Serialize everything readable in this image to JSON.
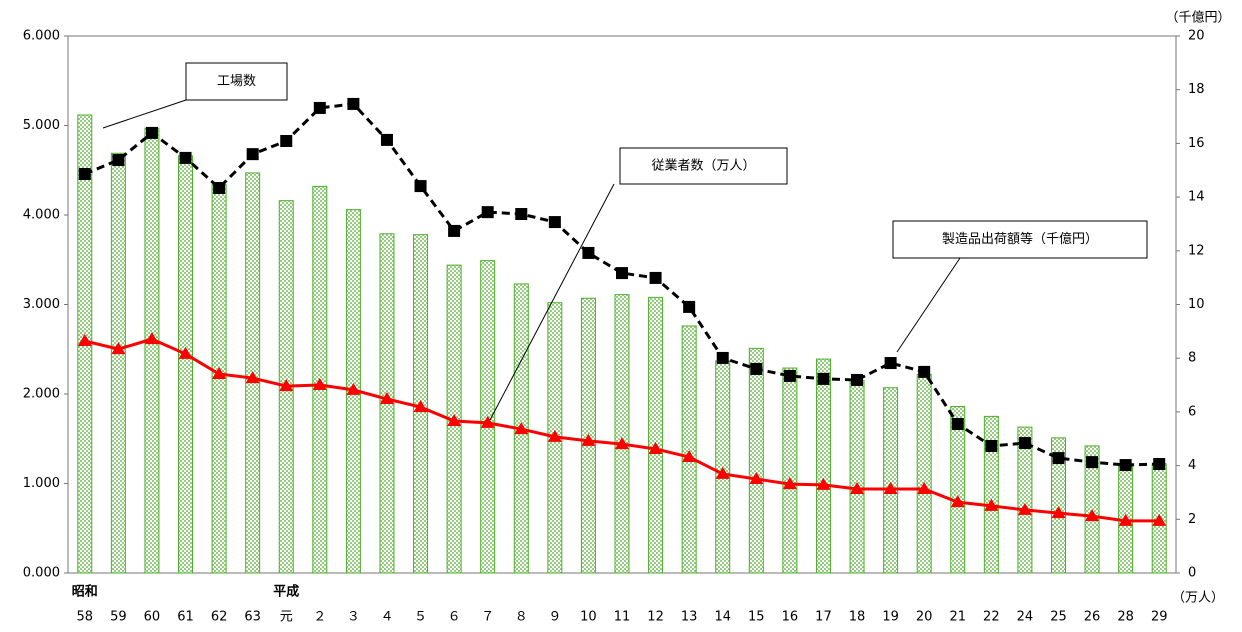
{
  "chart_data": {
    "type": "bar_line",
    "categories": [
      "58",
      "59",
      "60",
      "61",
      "62",
      "63",
      "元",
      "２",
      "３",
      "４",
      "５",
      "６",
      "７",
      "８",
      "９",
      "10",
      "11",
      "12",
      "13",
      "14",
      "15",
      "16",
      "17",
      "18",
      "19",
      "20",
      "21",
      "22",
      "24",
      "25",
      "26",
      "28",
      "29"
    ],
    "category_groups": [
      {
        "label": "昭和",
        "start": "58"
      },
      {
        "label": "平成",
        "start": "元"
      }
    ],
    "series": [
      {
        "name": "工場数",
        "kind": "bar",
        "axis": "y",
        "color": "#4caf2a",
        "values": [
          5117,
          4690,
          4970,
          4660,
          4340,
          4470,
          4160,
          4320,
          4060,
          3790,
          3780,
          3440,
          3490,
          3230,
          3020,
          3070,
          3110,
          3080,
          2760,
          2370,
          2510,
          2290,
          2390,
          2150,
          2070,
          2220,
          1860,
          1750,
          1630,
          1510,
          1420,
          1220,
          1220
        ]
      },
      {
        "name": "従業者数（万人）",
        "kind": "line",
        "axis": "y2",
        "color": "#ff0000",
        "marker": "triangle",
        "dashed": false,
        "values": [
          8.64,
          8.34,
          8.71,
          8.16,
          7.41,
          7.26,
          6.96,
          7.0,
          6.82,
          6.48,
          6.18,
          5.66,
          5.59,
          5.36,
          5.07,
          4.92,
          4.8,
          4.62,
          4.32,
          3.69,
          3.5,
          3.31,
          3.28,
          3.13,
          3.13,
          3.13,
          2.64,
          2.5,
          2.35,
          2.23,
          2.12,
          1.94,
          1.94
        ]
      },
      {
        "name": "製造品出荷額等（千億円）",
        "kind": "line",
        "axis": "y2",
        "color": "#000000",
        "marker": "square",
        "dashed": true,
        "values": [
          14.86,
          15.38,
          16.39,
          15.46,
          14.34,
          15.6,
          16.09,
          17.32,
          17.47,
          16.13,
          14.41,
          12.74,
          13.44,
          13.37,
          13.07,
          11.92,
          11.17,
          10.99,
          9.91,
          8.01,
          7.6,
          7.34,
          7.23,
          7.19,
          7.82,
          7.49,
          5.55,
          4.73,
          4.84,
          4.28,
          4.13,
          4.02,
          4.06
        ]
      }
    ],
    "ylim": [
      0,
      6000
    ],
    "yticks": [
      {
        "value": 0,
        "label": "0.000"
      },
      {
        "value": 1000,
        "label": "1.000"
      },
      {
        "value": 2000,
        "label": "2.000"
      },
      {
        "value": 3000,
        "label": "3.000"
      },
      {
        "value": 4000,
        "label": "4.000"
      },
      {
        "value": 5000,
        "label": "5.000"
      },
      {
        "value": 6000,
        "label": "6.000"
      }
    ],
    "y2lim": [
      0,
      20
    ],
    "y2ticks": [
      0,
      2,
      4,
      6,
      8,
      10,
      12,
      14,
      16,
      18,
      20
    ],
    "y2_labels": [
      "（千億円）",
      "（万人）"
    ]
  }
}
